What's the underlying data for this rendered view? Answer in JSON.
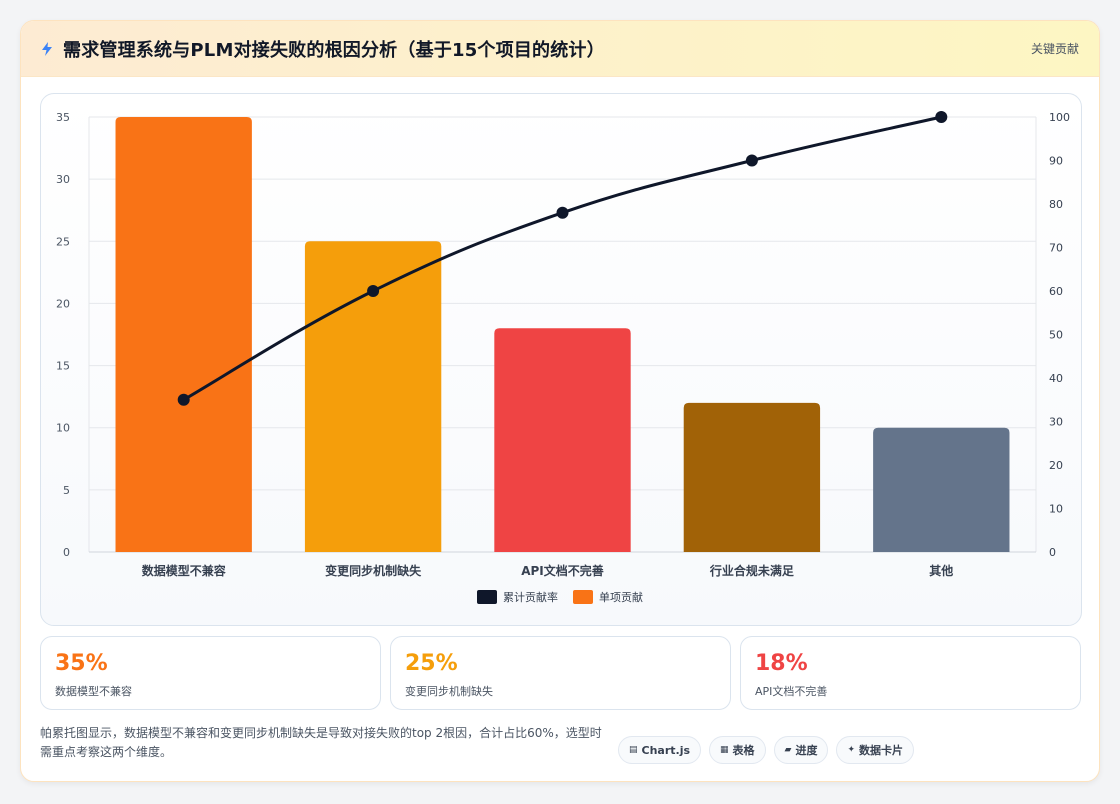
{
  "header": {
    "title": "需求管理系统与PLM对接失败的根因分析（基于15个项目的统计）",
    "link_label": "关键贡献",
    "icon": "bolt-icon"
  },
  "chart_data": {
    "type": "bar",
    "categories": [
      "数据模型不兼容",
      "变更同步机制缺失",
      "API文档不完善",
      "行业合规未满足",
      "其他"
    ],
    "series": [
      {
        "name": "单项贡献",
        "type": "bar",
        "axis": "left",
        "values": [
          35,
          25,
          18,
          12,
          10
        ],
        "colors": [
          "#f97316",
          "#f59e0b",
          "#ef4444",
          "#a16207",
          "#64748b"
        ]
      },
      {
        "name": "累计贡献率",
        "type": "line",
        "axis": "right",
        "values": [
          35,
          60,
          78,
          90,
          100
        ],
        "color": "#0f172a"
      }
    ],
    "ylim_left": [
      0,
      35
    ],
    "yticks_left": [
      0,
      5,
      10,
      15,
      20,
      25,
      30,
      35
    ],
    "ylim_right": [
      0,
      100
    ],
    "yticks_right": [
      0,
      10,
      20,
      30,
      40,
      50,
      60,
      70,
      80,
      90,
      100
    ],
    "grid": true,
    "legend_position": "bottom",
    "legend": [
      {
        "label": "累计贡献率",
        "color": "#0f172a"
      },
      {
        "label": "单项贡献",
        "color": "#f97316"
      }
    ]
  },
  "stats": [
    {
      "value": "35%",
      "label": "数据模型不兼容",
      "color": "#f97316"
    },
    {
      "value": "25%",
      "label": "变更同步机制缺失",
      "color": "#f59e0b"
    },
    {
      "value": "18%",
      "label": "API文档不完善",
      "color": "#ef4444"
    }
  ],
  "footer": {
    "note": "帕累托图显示，数据模型不兼容和变更同步机制缺失是导致对接失败的top 2根因，合计占比60%，选型时需重点考察这两个维度。",
    "chips": [
      {
        "icon": "▤",
        "label": "Chart.js"
      },
      {
        "icon": "▦",
        "label": "表格"
      },
      {
        "icon": "▰",
        "label": "进度"
      },
      {
        "icon": "✦",
        "label": "数据卡片"
      }
    ]
  }
}
